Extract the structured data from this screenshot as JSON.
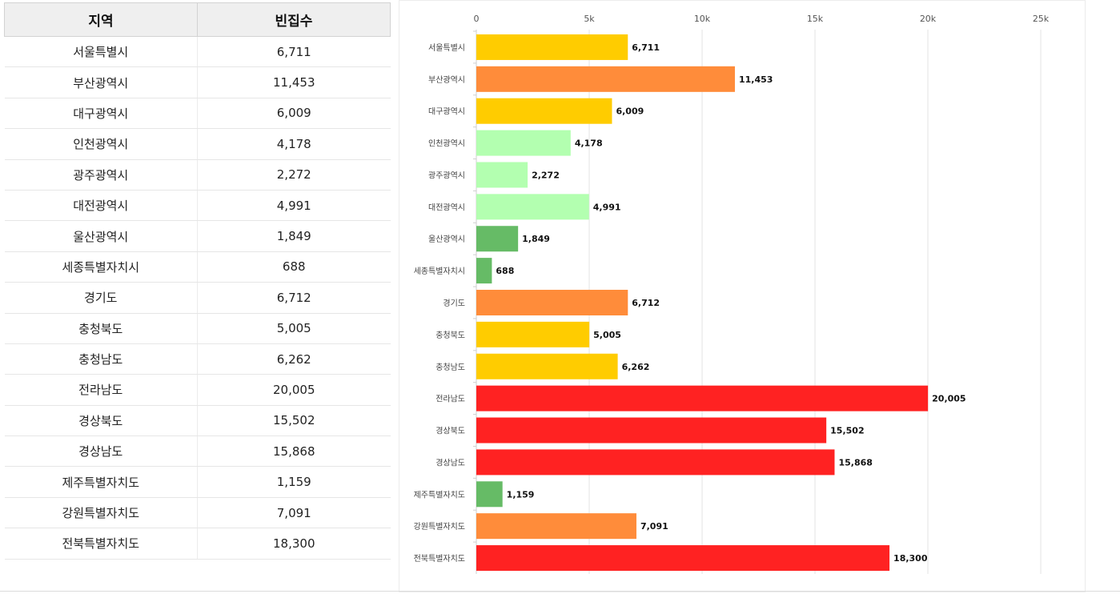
{
  "table": {
    "header_region": "지역",
    "header_count": "빈집수",
    "rows": [
      {
        "region": "서울특별시",
        "count": "6,711"
      },
      {
        "region": "부산광역시",
        "count": "11,453"
      },
      {
        "region": "대구광역시",
        "count": "6,009"
      },
      {
        "region": "인천광역시",
        "count": "4,178"
      },
      {
        "region": "광주광역시",
        "count": "2,272"
      },
      {
        "region": "대전광역시",
        "count": "4,991"
      },
      {
        "region": "울산광역시",
        "count": "1,849"
      },
      {
        "region": "세종특별자치시",
        "count": "688"
      },
      {
        "region": "경기도",
        "count": "6,712"
      },
      {
        "region": "충청북도",
        "count": "5,005"
      },
      {
        "region": "충청남도",
        "count": "6,262"
      },
      {
        "region": "전라남도",
        "count": "20,005"
      },
      {
        "region": "경상북도",
        "count": "15,502"
      },
      {
        "region": "경상남도",
        "count": "15,868"
      },
      {
        "region": "제주특별자치도",
        "count": "1,159"
      },
      {
        "region": "강원특별자치도",
        "count": "7,091"
      },
      {
        "region": "전북특별자치도",
        "count": "18,300"
      }
    ]
  },
  "chart_data": {
    "type": "bar",
    "orientation": "horizontal",
    "title": "",
    "xlabel": "",
    "ylabel": "",
    "xlim": [
      0,
      25000
    ],
    "ticks": [
      0,
      5000,
      10000,
      15000,
      20000,
      25000
    ],
    "tick_labels": [
      "0",
      "5k",
      "10k",
      "15k",
      "20k",
      "25k"
    ],
    "grid": true,
    "legend": "none",
    "categories": [
      "서울특별시",
      "부산광역시",
      "대구광역시",
      "인천광역시",
      "광주광역시",
      "대전광역시",
      "울산광역시",
      "세종특별자치시",
      "경기도",
      "충청북도",
      "충청남도",
      "전라남도",
      "경상북도",
      "경상남도",
      "제주특별자치도",
      "강원특별자치도",
      "전북특별자치도"
    ],
    "values": [
      6711,
      11453,
      6009,
      4178,
      2272,
      4991,
      1849,
      688,
      6712,
      5005,
      6262,
      20005,
      15502,
      15868,
      1159,
      7091,
      18300
    ],
    "value_labels": [
      "6,711",
      "11,453",
      "6,009",
      "4,178",
      "2,272",
      "4,991",
      "1,849",
      "688",
      "6,712",
      "5,005",
      "6,262",
      "20,005",
      "15,502",
      "15,868",
      "1,159",
      "7,091",
      "18,300"
    ],
    "bar_colors": [
      "#ffcc00",
      "#ff8c3a",
      "#ffcc00",
      "#b3ffb0",
      "#b3ffb0",
      "#b3ffb0",
      "#66bb66",
      "#66bb66",
      "#ff8c3a",
      "#ffcc00",
      "#ffcc00",
      "#ff2222",
      "#ff2222",
      "#ff2222",
      "#66bb66",
      "#ff8c3a",
      "#ff2222"
    ]
  }
}
